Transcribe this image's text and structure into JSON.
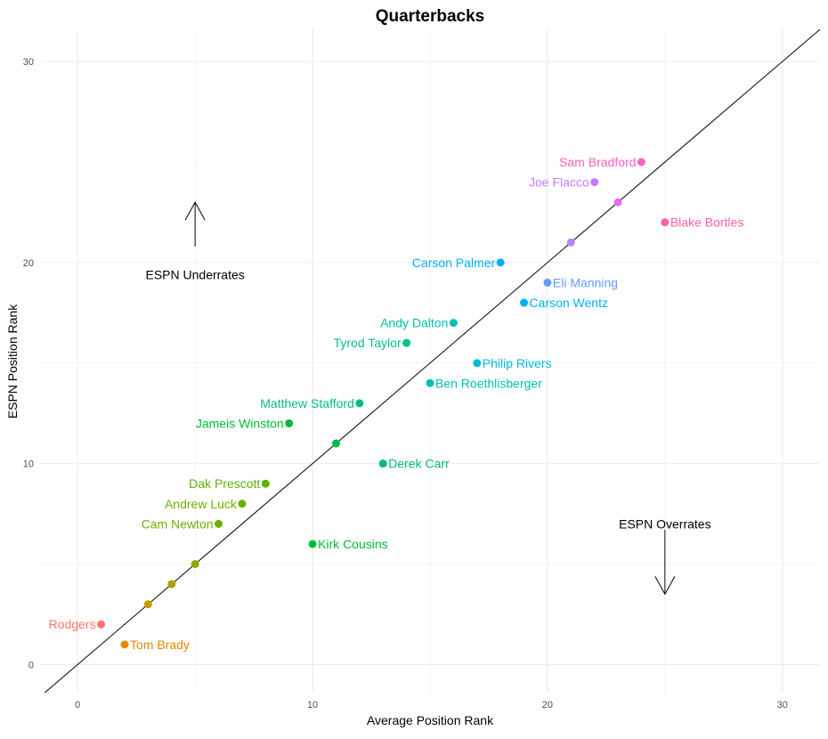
{
  "chart_data": {
    "type": "scatter",
    "title": "Quarterbacks",
    "xlabel": "Average Position Rank",
    "ylabel": "ESPN Position Rank",
    "xlim": [
      -1.6,
      31.6
    ],
    "ylim": [
      -1.4,
      31.6
    ],
    "x_ticks": [
      0,
      10,
      20,
      30
    ],
    "y_ticks": [
      0,
      10,
      20,
      30
    ],
    "grid": true,
    "legend": "none",
    "reference_line": {
      "slope": 1,
      "intercept": 0
    },
    "points": [
      {
        "x": 1,
        "y": 2,
        "label": "Rodgers",
        "color": "#F8766D",
        "side": "left"
      },
      {
        "x": 2,
        "y": 1,
        "label": "Tom Brady",
        "color": "#E58700",
        "side": "right"
      },
      {
        "x": 3,
        "y": 3,
        "label": "",
        "color": "#C99800",
        "side": "none"
      },
      {
        "x": 4,
        "y": 4,
        "label": "",
        "color": "#A3A500",
        "side": "none"
      },
      {
        "x": 5,
        "y": 5,
        "label": "",
        "color": "#8FAA00",
        "side": "none"
      },
      {
        "x": 6,
        "y": 7,
        "label": "Cam Newton",
        "color": "#6BB100",
        "side": "left"
      },
      {
        "x": 7,
        "y": 8,
        "label": "Andrew Luck",
        "color": "#6BB100",
        "side": "left"
      },
      {
        "x": 8,
        "y": 9,
        "label": "Dak Prescott",
        "color": "#5BB300",
        "side": "left"
      },
      {
        "x": 9,
        "y": 12,
        "label": "Jameis Winston",
        "color": "#00BA38",
        "side": "left"
      },
      {
        "x": 10,
        "y": 6,
        "label": "Kirk Cousins",
        "color": "#00BA38",
        "side": "right"
      },
      {
        "x": 11,
        "y": 11,
        "label": "",
        "color": "#00B94A",
        "side": "none"
      },
      {
        "x": 12,
        "y": 13,
        "label": "Matthew Stafford",
        "color": "#00BF7D",
        "side": "left"
      },
      {
        "x": 13,
        "y": 10,
        "label": "Derek Carr",
        "color": "#00BC6E",
        "side": "right"
      },
      {
        "x": 14,
        "y": 16,
        "label": "Tyrod Taylor",
        "color": "#00C08B",
        "side": "left"
      },
      {
        "x": 15,
        "y": 14,
        "label": "Ben Roethlisberger",
        "color": "#00C0AF",
        "side": "right"
      },
      {
        "x": 16,
        "y": 17,
        "label": "Andy Dalton",
        "color": "#00C0AF",
        "side": "left"
      },
      {
        "x": 17,
        "y": 15,
        "label": "Philip Rivers",
        "color": "#00BCD8",
        "side": "right"
      },
      {
        "x": 18,
        "y": 20,
        "label": "Carson Palmer",
        "color": "#00B0F6",
        "side": "left"
      },
      {
        "x": 19,
        "y": 18,
        "label": "Carson Wentz",
        "color": "#00B0F6",
        "side": "right"
      },
      {
        "x": 20,
        "y": 19,
        "label": "Eli Manning",
        "color": "#619CFF",
        "side": "right"
      },
      {
        "x": 21,
        "y": 21,
        "label": "",
        "color": "#B983FF",
        "side": "none"
      },
      {
        "x": 22,
        "y": 24,
        "label": "Joe Flacco",
        "color": "#C77CFF",
        "side": "left"
      },
      {
        "x": 23,
        "y": 23,
        "label": "",
        "color": "#E76BF3",
        "side": "none"
      },
      {
        "x": 24,
        "y": 25,
        "label": "Sam Bradford",
        "color": "#FF61C3",
        "side": "left"
      },
      {
        "x": 25,
        "y": 22,
        "label": "Blake Bortles",
        "color": "#FF61A4",
        "side": "right"
      }
    ],
    "annotations": [
      {
        "text": "ESPN Underrates",
        "x": 5,
        "y": 19.4,
        "arrow_from": [
          5,
          20.8
        ],
        "arrow_to": [
          5,
          23
        ],
        "arrow_direction": "up"
      },
      {
        "text": "ESPN Overrates",
        "x": 25,
        "y": 7,
        "arrow_from": [
          25,
          6.7
        ],
        "arrow_to": [
          25,
          3.5
        ],
        "arrow_direction": "down"
      }
    ]
  }
}
